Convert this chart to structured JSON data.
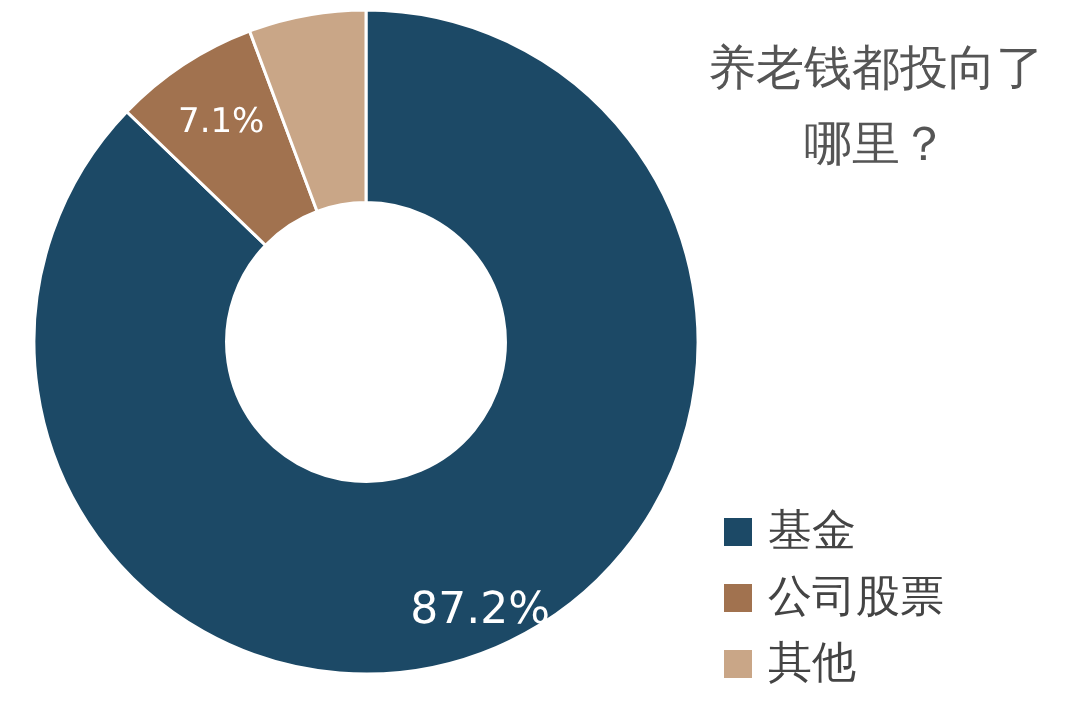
{
  "chart_data": {
    "type": "donut",
    "title": "养老钱都投向了哪里？",
    "categories": [
      "基金",
      "公司股票",
      "其他"
    ],
    "values": [
      87.2,
      7.1,
      5.7
    ],
    "colors": [
      "#1c4966",
      "#a1724f",
      "#c9a687"
    ],
    "value_labels": [
      "87.2%",
      "7.1%",
      null
    ],
    "legend": "bottom right"
  }
}
